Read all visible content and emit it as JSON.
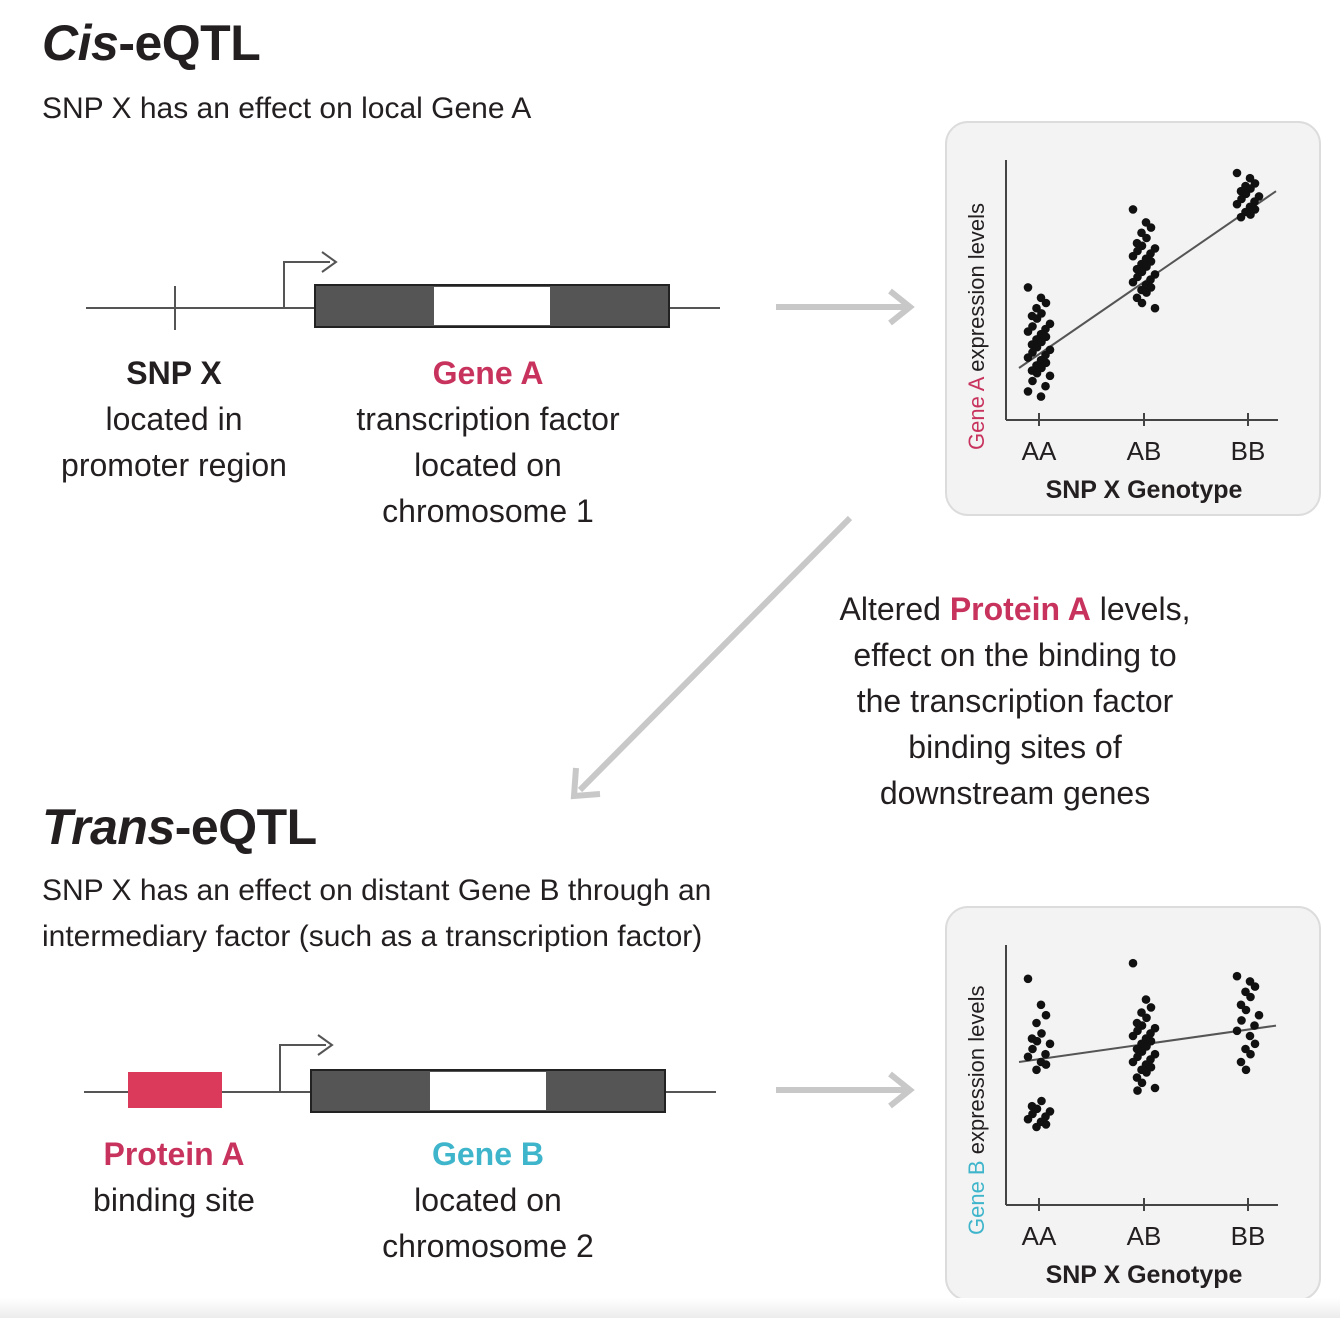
{
  "cis": {
    "title_italic": "Cis",
    "title_rest": "-eQTL",
    "subtitle": "SNP X has an effect on local Gene A",
    "snp_label": "SNP X",
    "snp_desc": [
      "located in",
      "promoter region"
    ],
    "gene_label": "Gene A",
    "gene_desc": [
      "transcription factor",
      "located on",
      "chromosome 1"
    ]
  },
  "middle_text": {
    "prefix": "Altered ",
    "highlight": "Protein A",
    "suffix": " levels,",
    "lines": [
      "effect on the binding to",
      "the transcription factor",
      "binding sites of",
      "downstream genes"
    ]
  },
  "trans": {
    "title_italic": "Trans",
    "title_rest": "-eQTL",
    "subtitle_lines": [
      "SNP X has an effect on distant Gene B through an",
      "intermediary factor (such as a transcription factor)"
    ],
    "binding_label": "Protein A",
    "binding_desc": "binding site",
    "gene_label": "Gene B",
    "gene_desc": [
      "located on",
      "chromosome 2"
    ]
  },
  "colors": {
    "pink": "#c8335e",
    "cyan": "#3fb5cb",
    "exon": "#555555",
    "binding_site": "#dc3a5b",
    "arrow_gray": "#c8c8c8"
  },
  "chart_data": [
    {
      "type": "scatter",
      "title": "",
      "ylabel_highlight": "Gene A",
      "ylabel_rest": " expression levels",
      "xlabel": "SNP X Genotype",
      "categories": [
        "AA",
        "AB",
        "BB"
      ],
      "ylim": [
        0,
        100
      ],
      "trend_line": {
        "start": 20,
        "end": 88
      },
      "series": [
        {
          "category": "AA",
          "values": [
            51,
            47,
            45,
            43,
            41,
            40,
            39,
            37,
            36,
            35,
            34,
            33,
            32,
            31,
            30,
            29,
            28,
            27,
            26,
            25,
            24,
            23,
            22,
            21,
            20,
            19,
            18,
            17,
            15,
            13,
            11,
            9
          ]
        },
        {
          "category": "AB",
          "values": [
            81,
            76,
            74,
            72,
            70,
            68,
            67,
            66,
            65,
            64,
            63,
            62,
            61,
            60,
            59,
            58,
            57,
            56,
            55,
            54,
            53,
            52,
            51,
            50,
            49,
            47,
            45,
            43
          ]
        },
        {
          "category": "BB",
          "values": [
            95,
            93,
            91,
            90,
            89,
            88,
            87,
            86,
            85,
            84,
            83,
            82,
            81,
            80,
            79,
            78
          ]
        }
      ]
    },
    {
      "type": "scatter",
      "title": "",
      "ylabel_highlight": "Gene B",
      "ylabel_rest": " expression levels",
      "xlabel": "SNP X Genotype",
      "categories": [
        "AA",
        "AB",
        "BB"
      ],
      "ylim": [
        0,
        100
      ],
      "trend_line": {
        "start": 55,
        "end": 69
      },
      "series": [
        {
          "category": "AA",
          "values": [
            87,
            77,
            73,
            70,
            66,
            64,
            63,
            62,
            60,
            58,
            57,
            55,
            54,
            52,
            40,
            38,
            37,
            36,
            35,
            34,
            33,
            32,
            31,
            30
          ]
        },
        {
          "category": "AB",
          "values": [
            93,
            79,
            76,
            74,
            72,
            70,
            69,
            68,
            67,
            66,
            65,
            64,
            63,
            62,
            61,
            60,
            59,
            58,
            57,
            56,
            55,
            54,
            53,
            52,
            51,
            49,
            47,
            45,
            44
          ]
        },
        {
          "category": "BB",
          "values": [
            88,
            86,
            84,
            82,
            80,
            77,
            75,
            73,
            71,
            69,
            67,
            65,
            62,
            60,
            58,
            55,
            52
          ]
        }
      ]
    }
  ]
}
